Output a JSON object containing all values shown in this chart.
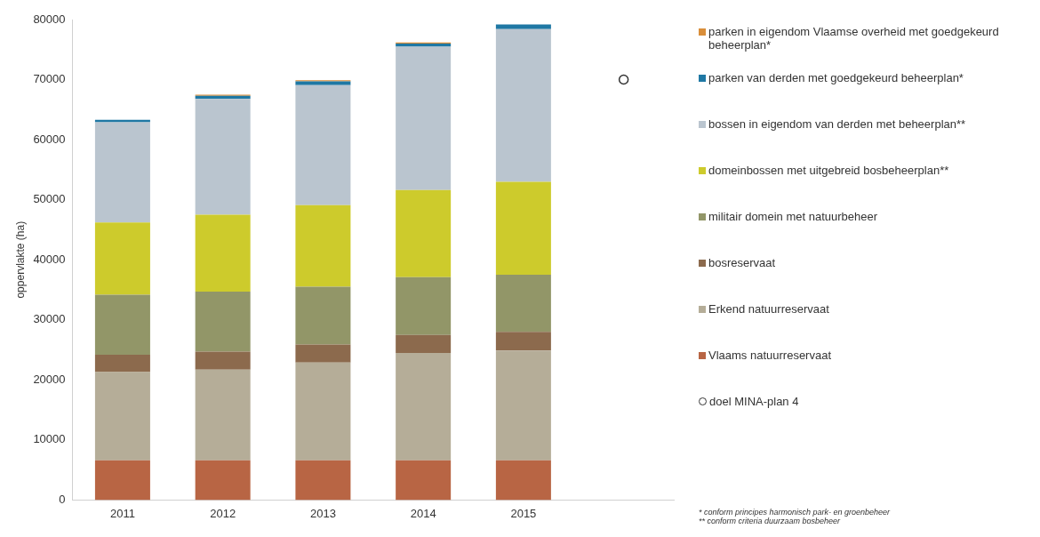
{
  "chart_data": {
    "type": "bar",
    "stacked": true,
    "ylabel": "oppervlakte (ha)",
    "categories": [
      "2011",
      "2012",
      "2013",
      "2014",
      "2015",
      null
    ],
    "ylim": [
      0,
      80000
    ],
    "yticks": [
      0,
      10000,
      20000,
      30000,
      40000,
      50000,
      60000,
      70000,
      80000
    ],
    "grid": false,
    "legend": "right",
    "marker": "circle",
    "series": [
      {
        "name": "Vlaams natuurreservaat",
        "color": "#b86544",
        "values": [
          6600,
          6600,
          6600,
          6600,
          6600,
          null
        ]
      },
      {
        "name": "Erkend natuurreservaat",
        "color": "#b5ad98",
        "values": [
          14700,
          15100,
          16300,
          17900,
          18300,
          null
        ]
      },
      {
        "name": "bosreservaat",
        "color": "#8c6a4d",
        "values": [
          2900,
          3000,
          3000,
          3000,
          3100,
          null
        ]
      },
      {
        "name": "militair domein met natuurbeheer",
        "color": "#929668",
        "values": [
          10000,
          10000,
          9600,
          9600,
          9500,
          null
        ]
      },
      {
        "name": "domeinbossen met uitgebreid bosbeheerplan**",
        "color": "#cdcb2c",
        "values": [
          12000,
          12800,
          13600,
          14500,
          15500,
          null
        ]
      },
      {
        "name": "bossen in eigendom van derden met beheerplan**",
        "color": "#bac5cf",
        "values": [
          16700,
          19300,
          20000,
          23900,
          25400,
          null
        ]
      },
      {
        "name": "parken van derden met goedgekeurd beheerplan*",
        "color": "#1f78a4",
        "values": [
          400,
          500,
          600,
          500,
          800,
          null
        ]
      },
      {
        "name": "parken in eigendom Vlaamse overheid met goedgekeurd beheerplan*",
        "color": "#d98e3a",
        "values": [
          null,
          200,
          200,
          200,
          null,
          null
        ]
      },
      {
        "name": "doel  MINA-plan 4",
        "type": "scatter",
        "color": "#333333",
        "values": [
          null,
          null,
          null,
          null,
          null,
          70000
        ]
      }
    ],
    "annotations": [
      "* conform principes harmonisch park- en groenbeheer",
      "** conform criteria duurzaam bosbeheer"
    ]
  }
}
